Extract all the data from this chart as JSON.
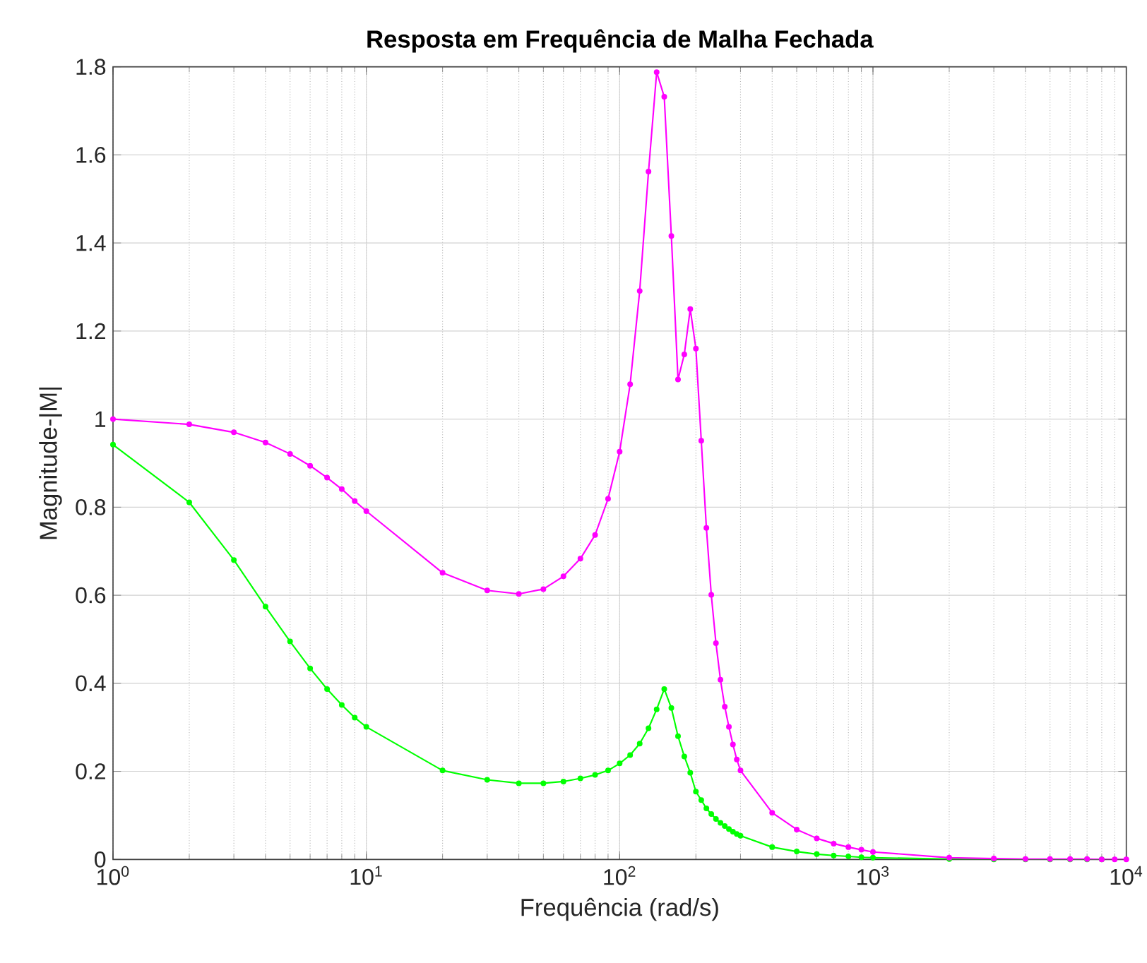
{
  "chart_data": {
    "type": "line",
    "title": "Resposta em Frequência de Malha Fechada",
    "xlabel": "Frequência (rad/s)",
    "ylabel": "Magnitude-|M|",
    "x": [
      1,
      2,
      3,
      4,
      5,
      6,
      7,
      8,
      9,
      10,
      20,
      30,
      40,
      50,
      60,
      70,
      80,
      90,
      100,
      110,
      120,
      130,
      140,
      150,
      160,
      170,
      180,
      190,
      200,
      210,
      220,
      230,
      240,
      250,
      260,
      270,
      280,
      290,
      300,
      400,
      500,
      600,
      700,
      800,
      900,
      1000,
      2000,
      3000,
      4000,
      5000,
      6000,
      7000,
      8000,
      9000,
      10000
    ],
    "series": [
      {
        "color": "#ff00ff",
        "values": [
          1.0,
          0.988,
          0.97,
          0.947,
          0.921,
          0.894,
          0.867,
          0.841,
          0.814,
          0.791,
          0.651,
          0.611,
          0.603,
          0.614,
          0.643,
          0.683,
          0.737,
          0.819,
          0.926,
          1.079,
          1.291,
          1.562,
          1.788,
          1.732,
          1.416,
          1.09,
          1.147,
          1.25,
          1.16,
          0.951,
          0.753,
          0.601,
          0.491,
          0.408,
          0.347,
          0.301,
          0.261,
          0.227,
          0.202,
          0.106,
          0.068,
          0.048,
          0.036,
          0.028,
          0.022,
          0.017,
          0.004,
          0.002,
          0.001,
          0.001,
          0.001,
          0.001,
          0.0,
          0.0,
          0.0
        ]
      },
      {
        "color": "#00ff00",
        "values": [
          0.942,
          0.811,
          0.68,
          0.574,
          0.495,
          0.434,
          0.387,
          0.351,
          0.322,
          0.301,
          0.202,
          0.181,
          0.173,
          0.173,
          0.177,
          0.184,
          0.192,
          0.202,
          0.218,
          0.237,
          0.263,
          0.298,
          0.341,
          0.387,
          0.344,
          0.28,
          0.234,
          0.197,
          0.154,
          0.135,
          0.116,
          0.103,
          0.092,
          0.083,
          0.076,
          0.069,
          0.063,
          0.058,
          0.054,
          0.028,
          0.018,
          0.012,
          0.009,
          0.007,
          0.005,
          0.004,
          0.001,
          0.0,
          0.0,
          0.0,
          0.0,
          0.0,
          0.0,
          null,
          null
        ]
      }
    ],
    "log": "x",
    "xlim": [
      1,
      10000
    ],
    "ylim": [
      0,
      1.8
    ],
    "xticks": [
      {
        "value": 1,
        "label": "10$^{0}$"
      },
      {
        "value": 10,
        "label": "10$^{1}$"
      },
      {
        "value": 100,
        "label": "10$^{2}$"
      },
      {
        "value": 1000,
        "label": "10$^{3}$"
      },
      {
        "value": 10000,
        "label": "10$^{4}$"
      }
    ],
    "yticks": [
      0,
      0.2,
      0.4,
      0.6,
      0.8,
      1,
      1.2,
      1.4,
      1.6,
      1.8
    ],
    "grid": true,
    "marker": "circle",
    "line_style": "solid"
  }
}
